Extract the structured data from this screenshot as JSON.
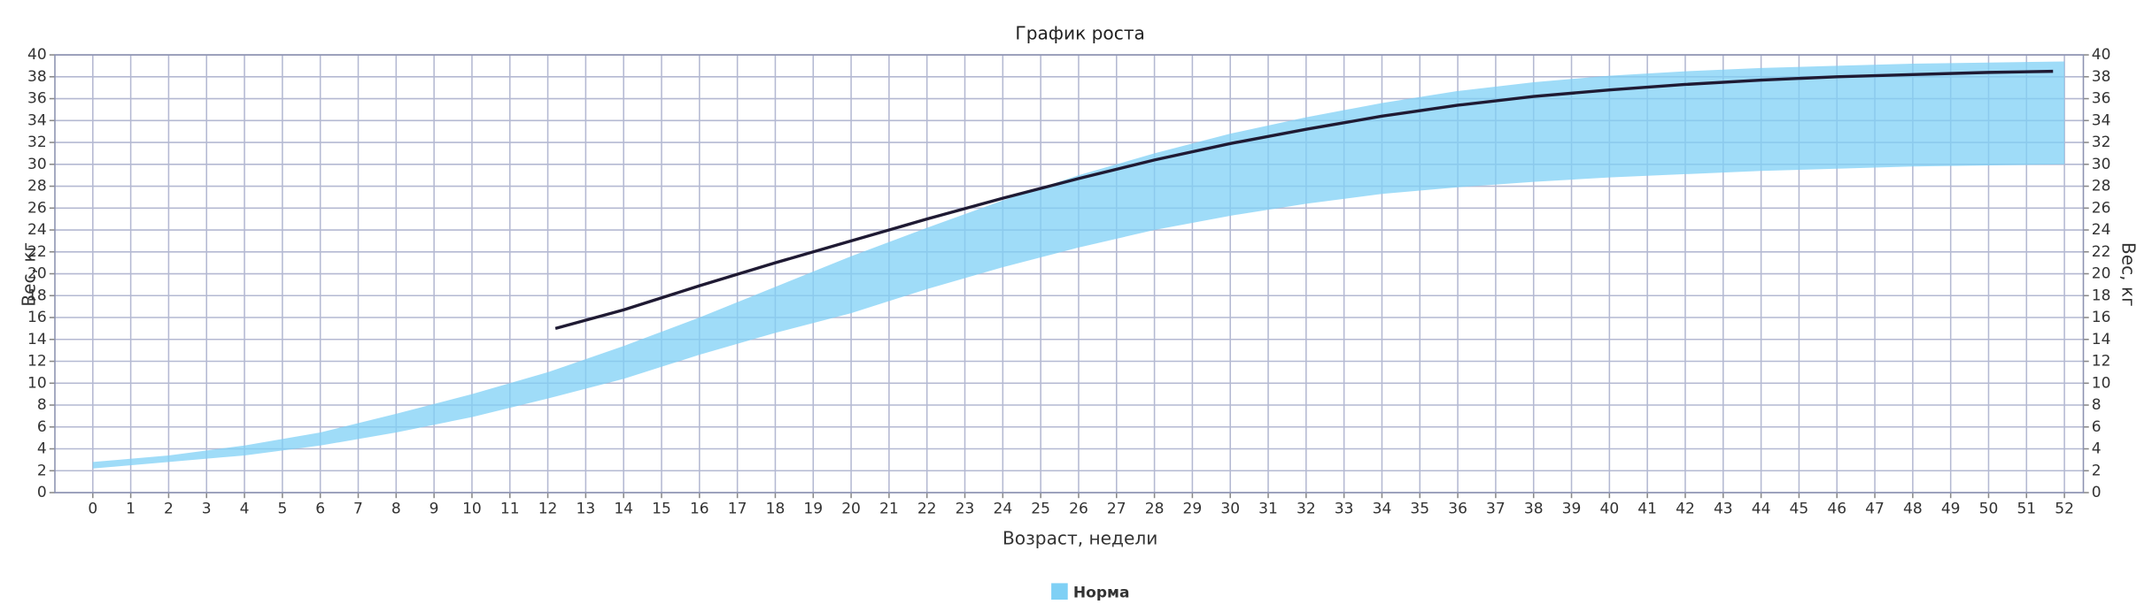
{
  "chart_data": {
    "type": "line",
    "title": "График роста",
    "x_label": "Возраст, недели",
    "y_label": "Вес, кг",
    "y2_label": "Вес, кг",
    "xlim": [
      -1,
      52.5
    ],
    "xticks": [
      0,
      1,
      2,
      3,
      4,
      5,
      6,
      7,
      8,
      9,
      10,
      11,
      12,
      13,
      14,
      15,
      16,
      17,
      18,
      19,
      20,
      21,
      22,
      23,
      24,
      25,
      26,
      27,
      28,
      29,
      30,
      31,
      32,
      33,
      34,
      35,
      36,
      37,
      38,
      39,
      40,
      41,
      42,
      43,
      44,
      45,
      46,
      47,
      48,
      49,
      50,
      51,
      52
    ],
    "ylim": [
      0,
      40
    ],
    "yticks": [
      0,
      2,
      4,
      6,
      8,
      10,
      12,
      14,
      16,
      18,
      20,
      22,
      24,
      26,
      28,
      30,
      32,
      34,
      36,
      38,
      40
    ],
    "y2lim": [
      0,
      40
    ],
    "y2ticks": [
      0,
      2,
      4,
      6,
      8,
      10,
      12,
      14,
      16,
      18,
      20,
      22,
      24,
      26,
      28,
      30,
      32,
      34,
      36,
      38,
      40
    ],
    "grid": true,
    "legend": "bottom",
    "series": [
      {
        "name": "Норма",
        "color": "#7fd0f5",
        "x": [
          0,
          2,
          4,
          6,
          8,
          10,
          12,
          14,
          16,
          18,
          20,
          22,
          24,
          26,
          28,
          30,
          32,
          34,
          36,
          38,
          40,
          42,
          44,
          46,
          48,
          50,
          52
        ],
        "upper": [
          2.8,
          3.4,
          4.3,
          5.5,
          7.2,
          9,
          11,
          13.4,
          16,
          18.8,
          21.6,
          24.2,
          26.7,
          29,
          31,
          32.8,
          34.3,
          35.6,
          36.7,
          37.5,
          38.1,
          38.5,
          38.8,
          39,
          39.2,
          39.3,
          39.4
        ],
        "lower": [
          2.2,
          2.8,
          3.4,
          4.3,
          5.5,
          6.9,
          8.6,
          10.4,
          12.6,
          14.6,
          16.4,
          18.6,
          20.6,
          22.4,
          24,
          25.3,
          26.4,
          27.3,
          27.9,
          28.4,
          28.8,
          29.1,
          29.4,
          29.6,
          29.8,
          29.9,
          30
        ]
      },
      {
        "color": "#1f1a33",
        "x": [
          12.2,
          14,
          16,
          18,
          20,
          22,
          24,
          26,
          28,
          30,
          32,
          34,
          36,
          38,
          40,
          42,
          44,
          46,
          48,
          50,
          51.7
        ],
        "values": [
          15,
          16.7,
          18.9,
          21,
          23,
          25,
          26.9,
          28.7,
          30.4,
          31.9,
          33.2,
          34.4,
          35.4,
          36.2,
          36.8,
          37.3,
          37.7,
          38,
          38.2,
          38.4,
          38.5
        ]
      }
    ]
  }
}
